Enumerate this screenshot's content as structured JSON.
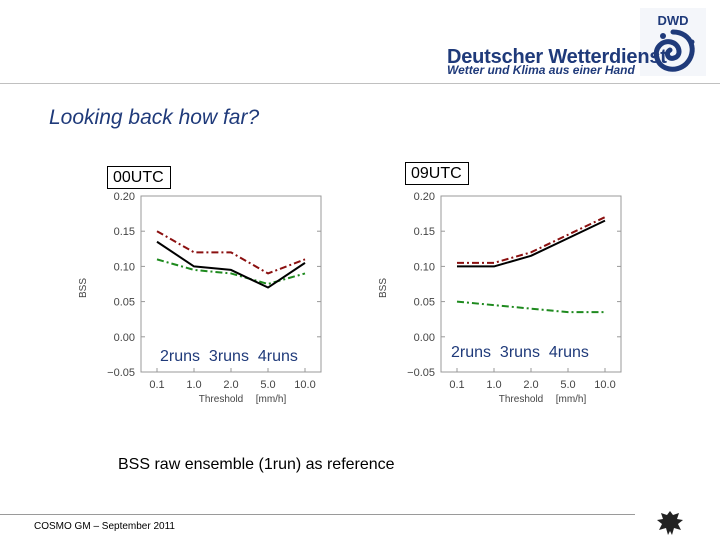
{
  "header": {
    "logo_line1": "Deutscher Wetterdienst",
    "logo_line2": "Wetter und Klima aus einer Hand",
    "logo_badge": "DWD",
    "brand_color": "#1f3a7a"
  },
  "slide": {
    "title": "Looking back how far?",
    "caption": "BSS  raw ensemble (1run) as reference",
    "footer": "COSMO GM  –  September 2011",
    "footer_icon": "federal-eagle-icon"
  },
  "chart_data": [
    {
      "type": "line",
      "panel_label": "00UTC",
      "ylabel": "BSS",
      "xlabel": "Threshold",
      "xlabel_unit": "[mm/h]",
      "categories": [
        "0.1",
        "1.0",
        "2.0",
        "5.0",
        "10.0"
      ],
      "ylim": [
        -0.05,
        0.2
      ],
      "yticks": [
        "0.20",
        "0.15",
        "0.10",
        "0.05",
        "0.00",
        "−0.05"
      ],
      "legend": [
        "2runs",
        "3runs",
        "4runs"
      ],
      "series": [
        {
          "name": "2runs",
          "color": "#1e8a1e",
          "style": "dash-dot",
          "values": [
            0.11,
            0.095,
            0.09,
            0.075,
            0.09
          ]
        },
        {
          "name": "3runs",
          "color": "#000000",
          "style": "solid",
          "values": [
            0.135,
            0.1,
            0.095,
            0.07,
            0.105
          ]
        },
        {
          "name": "4runs",
          "color": "#8b1010",
          "style": "dash-dot",
          "values": [
            0.15,
            0.12,
            0.12,
            0.09,
            0.11
          ]
        }
      ]
    },
    {
      "type": "line",
      "panel_label": "09UTC",
      "ylabel": "BSS",
      "xlabel": "Threshold",
      "xlabel_unit": "[mm/h]",
      "categories": [
        "0.1",
        "1.0",
        "2.0",
        "5.0",
        "10.0"
      ],
      "ylim": [
        -0.05,
        0.2
      ],
      "yticks": [
        "0.20",
        "0.15",
        "0.10",
        "0.05",
        "0.00",
        "−0.05"
      ],
      "legend": [
        "2runs",
        "3runs",
        "4runs"
      ],
      "series": [
        {
          "name": "2runs",
          "color": "#1e8a1e",
          "style": "dash-dot",
          "values": [
            0.05,
            0.045,
            0.04,
            0.035,
            0.035
          ]
        },
        {
          "name": "3runs",
          "color": "#000000",
          "style": "solid",
          "values": [
            0.1,
            0.1,
            0.115,
            0.14,
            0.165
          ]
        },
        {
          "name": "4runs",
          "color": "#8b1010",
          "style": "dash-dot",
          "values": [
            0.105,
            0.105,
            0.12,
            0.145,
            0.17
          ]
        }
      ]
    }
  ]
}
